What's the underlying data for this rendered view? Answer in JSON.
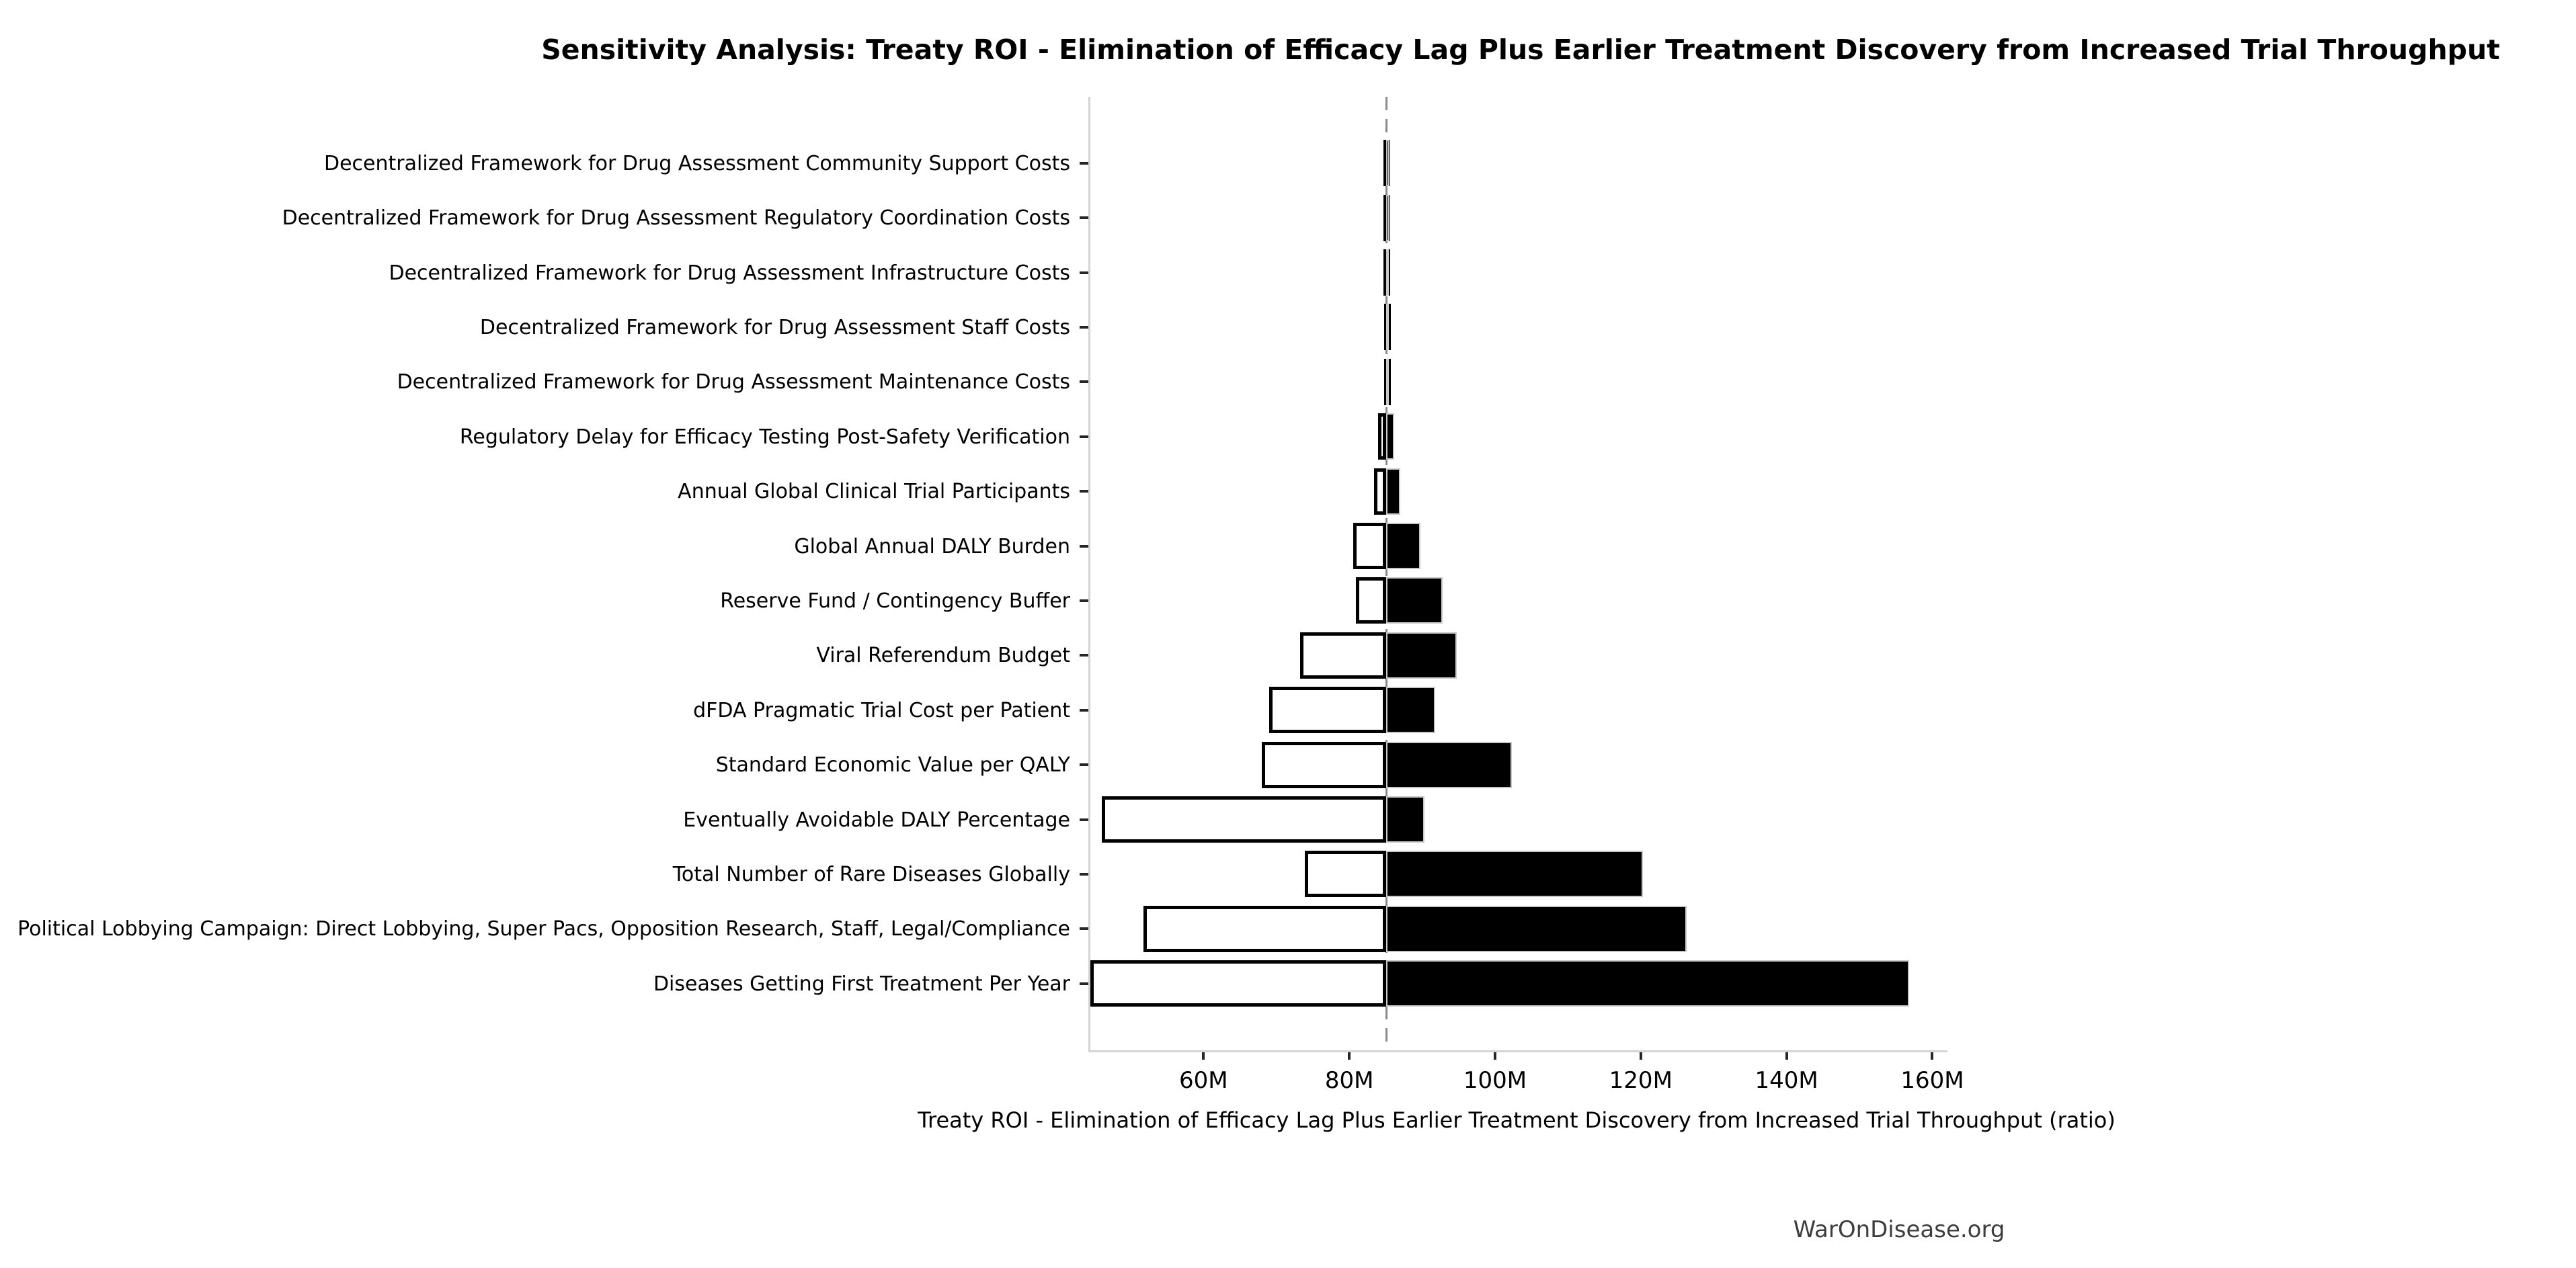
{
  "chart_data": {
    "type": "bar",
    "variant": "tornado-sensitivity",
    "title": "Sensitivity Analysis: Treaty ROI - Elimination of Efficacy Lag Plus Earlier Treatment Discovery from Increased Trial Throughput",
    "xlabel": "Treaty ROI - Elimination of Efficacy Lag Plus Earlier Treatment Discovery from Increased Trial Throughput (ratio)",
    "watermark": "WarOnDisease.org",
    "unit": "M",
    "baseline_value": 84.8,
    "xlim": [
      44.2,
      161.8
    ],
    "grid": false,
    "legend": false,
    "colors": {
      "low_bar_fill": "#ffffff",
      "low_bar_edge": "#000000",
      "high_bar_fill": "#000000",
      "high_bar_edge": "#c8c8c8",
      "baseline_dash": "#8a8a8a",
      "spine": "#d4d4d4"
    },
    "xticks": [
      {
        "value": 60,
        "label": "60M"
      },
      {
        "value": 80,
        "label": "80M"
      },
      {
        "value": 100,
        "label": "100M"
      },
      {
        "value": 120,
        "label": "120M"
      },
      {
        "value": 140,
        "label": "140M"
      },
      {
        "value": 160,
        "label": "160M"
      }
    ],
    "rows": [
      {
        "label": "Decentralized Framework for Drug Assessment Community Support Costs",
        "low": 84.4,
        "high": 85.2
      },
      {
        "label": "Decentralized Framework for Drug Assessment Regulatory Coordination Costs",
        "low": 84.4,
        "high": 85.2
      },
      {
        "label": "Decentralized Framework for Drug Assessment Infrastructure Costs",
        "low": 84.45,
        "high": 85.15
      },
      {
        "label": "Decentralized Framework for Drug Assessment Staff Costs",
        "low": 84.5,
        "high": 85.1
      },
      {
        "label": "Decentralized Framework for Drug Assessment Maintenance Costs",
        "low": 84.55,
        "high": 85.05
      },
      {
        "label": "Regulatory Delay for Efficacy Testing Post-Safety Verification",
        "low": 83.7,
        "high": 85.9
      },
      {
        "label": "Annual Global Clinical Trial Participants",
        "low": 83.1,
        "high": 86.7
      },
      {
        "label": "Global Annual DALY Burden",
        "low": 80.3,
        "high": 89.5
      },
      {
        "label": "Reserve Fund / Contingency Buffer",
        "low": 80.6,
        "high": 92.5
      },
      {
        "label": "Viral Referendum Budget",
        "low": 73.0,
        "high": 94.5
      },
      {
        "label": "dFDA Pragmatic Trial Cost per Patient",
        "low": 68.7,
        "high": 91.5
      },
      {
        "label": "Standard Economic Value per QALY",
        "low": 67.7,
        "high": 102.0
      },
      {
        "label": "Eventually Avoidable DALY Percentage",
        "low": 45.8,
        "high": 90.0
      },
      {
        "label": "Total Number of Rare Diseases Globally",
        "low": 73.6,
        "high": 120.0
      },
      {
        "label": "Political Lobbying Campaign: Direct Lobbying, Super Pacs, Opposition Research, Staff, Legal/Compliance",
        "low": 51.5,
        "high": 126.0
      },
      {
        "label": "Diseases Getting First Treatment Per Year",
        "low": 44.2,
        "high": 156.5
      }
    ]
  }
}
